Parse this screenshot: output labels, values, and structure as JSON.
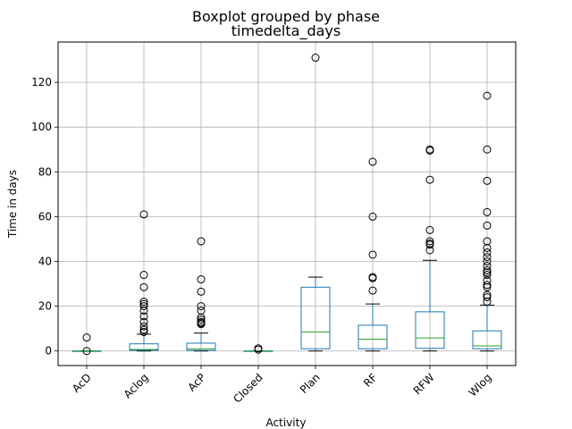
{
  "chart_data": {
    "type": "boxplot",
    "title": "Boxplot grouped by phase",
    "subtitle": "timedelta_days",
    "xlabel": "Activity",
    "ylabel": "Time in days",
    "ylim": [
      -6.5,
      138
    ],
    "yticks": [
      0,
      20,
      40,
      60,
      80,
      100,
      120
    ],
    "grid": true,
    "colors": {
      "box": "#1f77b4",
      "median": "#2ca02c",
      "whisker": "#000000",
      "grid": "#b0b0b0"
    },
    "categories": [
      "AcD",
      "Aclog",
      "AcP",
      "Closed",
      "Plan",
      "RF",
      "RFW",
      "Wlog"
    ],
    "boxes": [
      {
        "q1": 0,
        "median": 0,
        "q3": 0,
        "whislo": 0,
        "whishi": 0,
        "fliers": [
          6,
          0
        ]
      },
      {
        "q1": 0.3,
        "median": 0.7,
        "q3": 3.2,
        "whislo": 0,
        "whishi": 7.5,
        "fliers": [
          61,
          34,
          28.5,
          22,
          21,
          20,
          18,
          15.5,
          13,
          11,
          9.5,
          8.5
        ]
      },
      {
        "q1": 0.3,
        "median": 1,
        "q3": 3.5,
        "whislo": 0,
        "whishi": 8,
        "fliers": [
          49,
          32,
          26.5,
          20,
          18,
          15,
          14,
          13,
          12.5,
          12
        ]
      },
      {
        "q1": 0,
        "median": 0,
        "q3": 0,
        "whislo": 0,
        "whishi": 0,
        "fliers": [
          1.2,
          0.6
        ]
      },
      {
        "q1": 1,
        "median": 8.5,
        "q3": 28.5,
        "whislo": 0,
        "whishi": 33,
        "fliers": [
          131
        ]
      },
      {
        "q1": 1,
        "median": 5.3,
        "q3": 11.5,
        "whislo": 0,
        "whishi": 21,
        "fliers": [
          84.5,
          60,
          43,
          33,
          32.5,
          27
        ]
      },
      {
        "q1": 1.2,
        "median": 5.8,
        "q3": 17.5,
        "whislo": 0,
        "whishi": 40.5,
        "fliers": [
          90,
          89.5,
          76.5,
          54,
          49,
          48,
          47.5,
          45
        ]
      },
      {
        "q1": 1,
        "median": 2.3,
        "q3": 9,
        "whislo": 0,
        "whishi": 20.5,
        "fliers": [
          114,
          90,
          76,
          62,
          56,
          49,
          46,
          44,
          42,
          40,
          38,
          36,
          35,
          34,
          31.5,
          29.5,
          28.5,
          25,
          24,
          22
        ]
      }
    ]
  }
}
